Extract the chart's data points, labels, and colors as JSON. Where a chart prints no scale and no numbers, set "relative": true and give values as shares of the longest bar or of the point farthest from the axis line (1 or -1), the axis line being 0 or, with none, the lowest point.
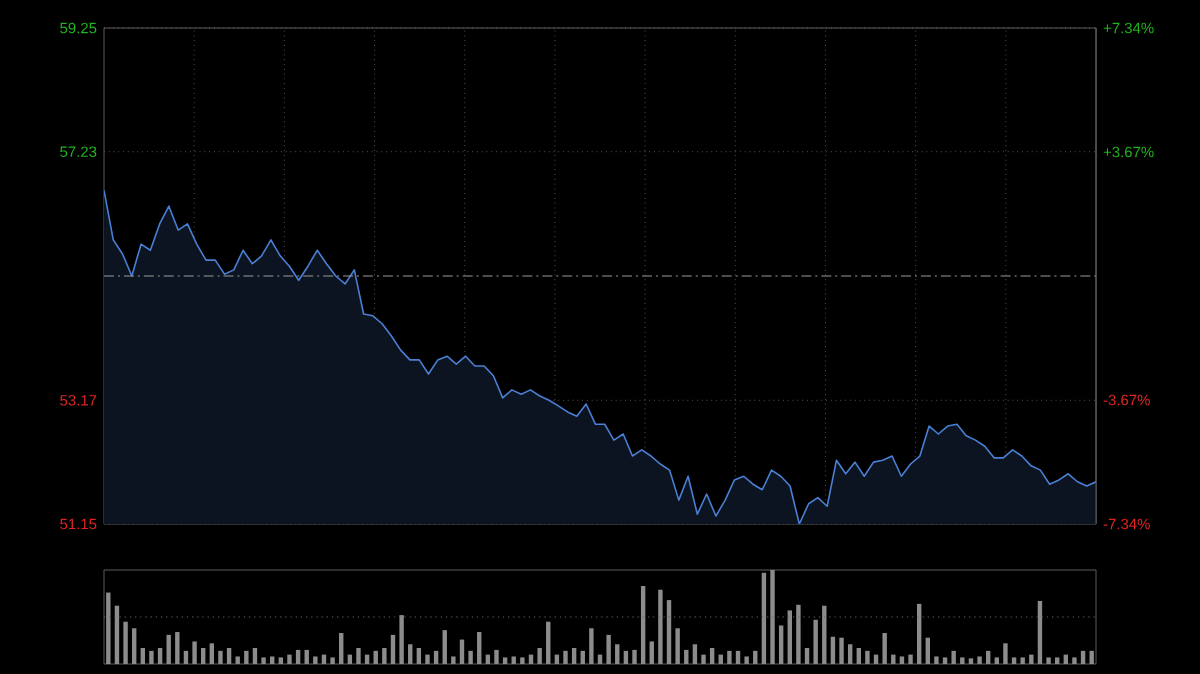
{
  "chart_data": [
    {
      "type": "area",
      "categories": [
        null,
        null,
        null,
        null,
        null,
        null,
        null,
        null,
        null,
        null,
        null,
        null,
        null,
        null,
        null,
        null,
        null,
        null,
        null,
        null,
        null,
        null,
        null,
        null,
        null,
        null,
        null,
        null,
        null,
        null,
        null,
        null,
        null,
        null,
        null,
        null,
        null,
        null,
        null,
        null,
        null,
        null,
        null,
        null,
        null,
        null,
        null,
        null,
        null,
        null,
        null,
        null,
        null,
        null,
        null,
        null,
        null,
        null,
        null,
        null,
        null,
        null,
        null,
        null,
        null,
        null,
        null,
        null,
        null,
        null,
        null,
        null,
        null,
        null,
        null,
        null,
        null,
        null,
        null,
        null,
        null,
        null,
        null,
        null,
        null,
        null,
        null,
        null,
        null,
        null,
        null,
        null,
        null,
        null,
        null,
        null,
        null,
        null,
        null,
        null,
        null,
        null,
        null,
        null,
        null,
        null,
        null,
        null
      ],
      "series": [
        {
          "color": "#4a80d4",
          "values": [
            56.6,
            55.79,
            55.56,
            55.2,
            55.72,
            55.62,
            56.05,
            56.34,
            55.95,
            56.05,
            55.72,
            55.46,
            55.46,
            55.23,
            55.3,
            55.62,
            55.4,
            55.53,
            55.79,
            55.53,
            55.36,
            55.13,
            55.36,
            55.62,
            55.4,
            55.2,
            55.07,
            55.3,
            54.58,
            54.55,
            54.42,
            54.22,
            53.99,
            53.83,
            53.83,
            53.6,
            53.83,
            53.89,
            53.76,
            53.89,
            53.73,
            53.73,
            53.57,
            53.21,
            53.34,
            53.27,
            53.34,
            53.24,
            53.17,
            53.08,
            52.98,
            52.91,
            53.11,
            52.78,
            52.78,
            52.52,
            52.62,
            52.26,
            52.36,
            52.26,
            52.13,
            52.03,
            51.54,
            51.93,
            51.31,
            51.64,
            51.28,
            51.54,
            51.87,
            51.93,
            51.8,
            51.71,
            52.03,
            51.93,
            51.77,
            51.15,
            51.48,
            51.58,
            51.44,
            52.19,
            51.97,
            52.16,
            51.93,
            52.16,
            52.19,
            52.26,
            51.93,
            52.13,
            52.26,
            52.75,
            52.62,
            52.75,
            52.78,
            52.59,
            52.52,
            52.42,
            52.23,
            52.23,
            52.36,
            52.26,
            52.1,
            52.03,
            51.8,
            51.87,
            51.97,
            51.84,
            51.77,
            51.84
          ]
        }
      ],
      "ylim": [
        51.15,
        59.25
      ],
      "yticks": [
        51.15,
        53.17,
        57.23,
        59.25
      ],
      "y2lim": [
        -7.34,
        7.34
      ],
      "y2ticks": [
        {
          "value": -7.34,
          "label": "-7.34%"
        },
        {
          "value": -3.67,
          "label": "-3.67%"
        },
        {
          "value": 3.67,
          "label": "+3.67%"
        },
        {
          "value": 7.34,
          "label": "+7.34%"
        }
      ],
      "ref_lines": [
        {
          "axis": "y",
          "value": 55.2,
          "line_style": "dashed",
          "color": "#9a9a9a"
        }
      ],
      "grid": true,
      "tick_labels": "y"
    },
    {
      "type": "bar",
      "categories": [
        null,
        null,
        null,
        null,
        null,
        null,
        null,
        null,
        null,
        null,
        null,
        null,
        null,
        null,
        null,
        null,
        null,
        null,
        null,
        null,
        null,
        null,
        null,
        null,
        null,
        null,
        null,
        null,
        null,
        null,
        null,
        null,
        null,
        null,
        null,
        null,
        null,
        null,
        null,
        null,
        null,
        null,
        null,
        null,
        null,
        null,
        null,
        null,
        null,
        null,
        null,
        null,
        null,
        null,
        null,
        null,
        null,
        null,
        null,
        null,
        null,
        null,
        null,
        null,
        null,
        null,
        null,
        null,
        null,
        null,
        null,
        null,
        null,
        null,
        null,
        null,
        null,
        null,
        null,
        null,
        null,
        null,
        null,
        null,
        null,
        null,
        null,
        null,
        null,
        null,
        null,
        null,
        null,
        null,
        null,
        null,
        null,
        null,
        null,
        null,
        null,
        null,
        null,
        null,
        null,
        null,
        null,
        null,
        null,
        null,
        null,
        null,
        null,
        null,
        null
      ],
      "values": [
        0.76,
        0.62,
        0.45,
        0.38,
        0.17,
        0.14,
        0.17,
        0.31,
        0.34,
        0.14,
        0.24,
        0.17,
        0.22,
        0.14,
        0.17,
        0.08,
        0.14,
        0.17,
        0.07,
        0.08,
        0.07,
        0.1,
        0.15,
        0.15,
        0.08,
        0.1,
        0.07,
        0.33,
        0.1,
        0.17,
        0.1,
        0.14,
        0.17,
        0.31,
        0.52,
        0.21,
        0.17,
        0.1,
        0.14,
        0.36,
        0.08,
        0.26,
        0.14,
        0.34,
        0.1,
        0.15,
        0.07,
        0.08,
        0.07,
        0.1,
        0.17,
        0.45,
        0.1,
        0.14,
        0.17,
        0.14,
        0.38,
        0.1,
        0.31,
        0.21,
        0.14,
        0.15,
        0.83,
        0.24,
        0.79,
        0.68,
        0.38,
        0.15,
        0.21,
        0.1,
        0.17,
        0.1,
        0.14,
        0.14,
        0.08,
        0.14,
        0.97,
        1,
        0.41,
        0.57,
        0.63,
        0.17,
        0.47,
        0.62,
        0.29,
        0.28,
        0.21,
        0.17,
        0.14,
        0.1,
        0.33,
        0.1,
        0.08,
        0.1,
        0.64,
        0.28,
        0.08,
        0.07,
        0.14,
        0.07,
        0.06,
        0.08,
        0.14,
        0.07,
        0.22,
        0.07,
        0.07,
        0.1,
        0.67,
        0.07,
        0.07,
        0.1,
        0.07,
        0.14,
        0.14
      ],
      "color": "#8c8c8c",
      "relative": true,
      "ref_lines": [
        {
          "axis": "y",
          "value": 0.5,
          "line_style": "dotted",
          "color": "#666666"
        }
      ],
      "tick_labels": false
    }
  ]
}
